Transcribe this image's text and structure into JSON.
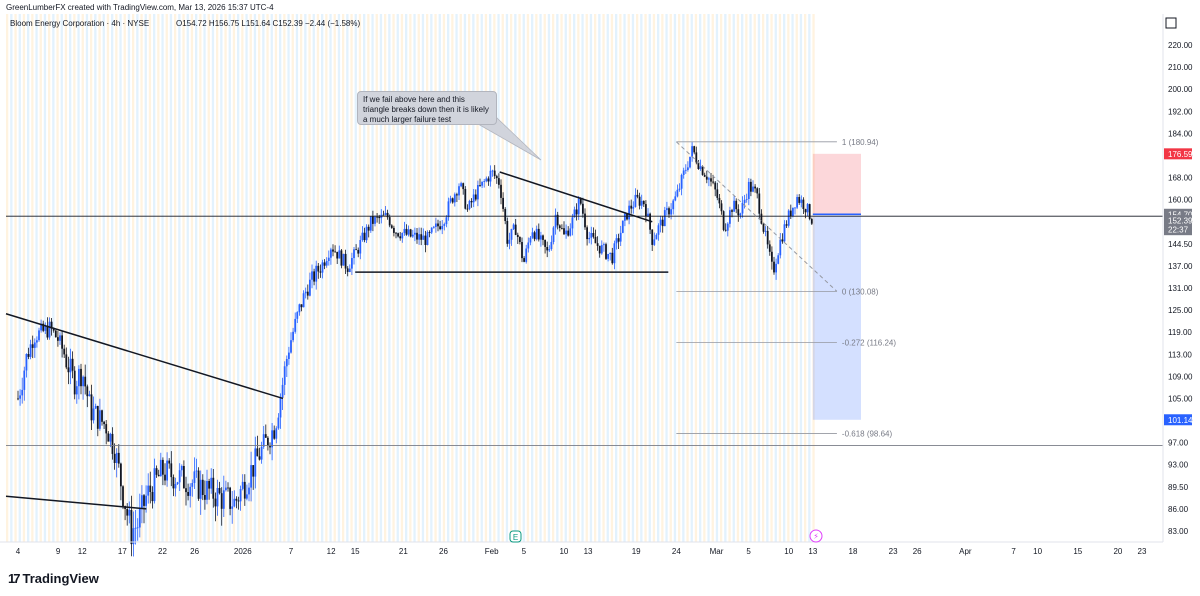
{
  "header": {
    "credit": "GreenLumberFX created with TradingView.com, Mar 13, 2026 15:37 UTC-4",
    "symbol_line": "Bloom Energy Corporation · 4h · NYSE",
    "ohlc": "O154.72  H156.75  L151.64  C152.39  −2.44 (−1.58%)"
  },
  "callout": {
    "text": "If we fail above here and this triangle breaks down then it is likely a much larger failure test"
  },
  "footer": {
    "logo_text": "TradingView",
    "logo_mark": "17"
  },
  "markers": {
    "earnings": "E",
    "dividend": "⚡"
  },
  "chart_data": {
    "type": "candlestick",
    "title": "Bloom Energy Corporation · 4h · NYSE",
    "y_ticks": [
      83.0,
      86.0,
      89.5,
      93.0,
      97.0,
      101.0,
      105.0,
      109.0,
      113.0,
      119.0,
      125.0,
      131.0,
      137.0,
      144.5,
      152.0,
      160.0,
      168.0,
      176.0,
      184.0,
      192.0,
      200.0,
      210.0,
      220.0
    ],
    "y_tick_labels": [
      "83.00",
      "86.00",
      "89.50",
      "93.00",
      "97.00",
      "101.00",
      "105.00",
      "109.00",
      "113.00",
      "119.00",
      "125.00",
      "131.00",
      "137.00",
      "144.50",
      "152.00",
      "160.00",
      "168.00",
      "176.00",
      "184.00",
      "192.00",
      "200.00",
      "210.00",
      "220.00"
    ],
    "x_ticks": [
      "4",
      "9",
      "12",
      "17",
      "22",
      "26",
      "2026",
      "7",
      "12",
      "15",
      "21",
      "26",
      "Feb",
      "5",
      "10",
      "13",
      "19",
      "24",
      "Mar",
      "5",
      "10",
      "13",
      "18",
      "23",
      "26",
      "Apr",
      "7",
      "10",
      "15",
      "20",
      "23"
    ],
    "price_path": [
      [
        "2025-12-04",
        105
      ],
      [
        "2025-12-05",
        112
      ],
      [
        "2025-12-06",
        118
      ],
      [
        "2025-12-08",
        120
      ],
      [
        "2025-12-09",
        117
      ],
      [
        "2025-12-10",
        112
      ],
      [
        "2025-12-11",
        108
      ],
      [
        "2025-12-12",
        110
      ],
      [
        "2025-12-13",
        103
      ],
      [
        "2025-12-15",
        100
      ],
      [
        "2025-12-16",
        96
      ],
      [
        "2025-12-17",
        89
      ],
      [
        "2025-12-18",
        83
      ],
      [
        "2025-12-19",
        84
      ],
      [
        "2025-12-20",
        88
      ],
      [
        "2025-12-22",
        92
      ],
      [
        "2025-12-24",
        91
      ],
      [
        "2025-12-26",
        90
      ],
      [
        "2025-12-29",
        88
      ],
      [
        "2025-12-31",
        87
      ],
      [
        "2026-01-02",
        92
      ],
      [
        "2026-01-05",
        100
      ],
      [
        "2026-01-06",
        108
      ],
      [
        "2026-01-07",
        117
      ],
      [
        "2026-01-08",
        125
      ],
      [
        "2026-01-09",
        131
      ],
      [
        "2026-01-11",
        138
      ],
      [
        "2026-01-12",
        144
      ],
      [
        "2026-01-14",
        137
      ],
      [
        "2026-01-15",
        141
      ],
      [
        "2026-01-17",
        152
      ],
      [
        "2026-01-19",
        154
      ],
      [
        "2026-01-20",
        149
      ],
      [
        "2026-01-22",
        147
      ],
      [
        "2026-01-24",
        146
      ],
      [
        "2026-01-26",
        153
      ],
      [
        "2026-01-27",
        160
      ],
      [
        "2026-01-28",
        166
      ],
      [
        "2026-01-29",
        156
      ],
      [
        "2026-01-30",
        162
      ],
      [
        "2026-02-01",
        170
      ],
      [
        "2026-02-02",
        166
      ],
      [
        "2026-02-03",
        145
      ],
      [
        "2026-02-04",
        150
      ],
      [
        "2026-02-05",
        138
      ],
      [
        "2026-02-06",
        150
      ],
      [
        "2026-02-08",
        141
      ],
      [
        "2026-02-09",
        155
      ],
      [
        "2026-02-10",
        147
      ],
      [
        "2026-02-11",
        152
      ],
      [
        "2026-02-12",
        160
      ],
      [
        "2026-02-13",
        147
      ],
      [
        "2026-02-15",
        142
      ],
      [
        "2026-02-16",
        140
      ],
      [
        "2026-02-17",
        148
      ],
      [
        "2026-02-18",
        156
      ],
      [
        "2026-02-19",
        160
      ],
      [
        "2026-02-20",
        159
      ],
      [
        "2026-02-21",
        146
      ],
      [
        "2026-02-23",
        156
      ],
      [
        "2026-02-24",
        161
      ],
      [
        "2026-02-25",
        170
      ],
      [
        "2026-02-26",
        178
      ],
      [
        "2026-02-27",
        172
      ],
      [
        "2026-02-28",
        168
      ],
      [
        "2026-03-01",
        162
      ],
      [
        "2026-03-02",
        150
      ],
      [
        "2026-03-03",
        158
      ],
      [
        "2026-03-04",
        155
      ],
      [
        "2026-03-05",
        165
      ],
      [
        "2026-03-06",
        162
      ],
      [
        "2026-03-07",
        148
      ],
      [
        "2026-03-08",
        135
      ],
      [
        "2026-03-09",
        146
      ],
      [
        "2026-03-10",
        154
      ],
      [
        "2026-03-11",
        161
      ],
      [
        "2026-03-12",
        158
      ],
      [
        "2026-03-13",
        152.39
      ]
    ],
    "last_price": 152.39,
    "price_labels": [
      {
        "text": "176.59",
        "value": 176.59,
        "color": "#f23645"
      },
      {
        "text": "154.70",
        "value": 154.7,
        "color": "#787b86"
      },
      {
        "text": "152.39",
        "value": 152.39,
        "color": "#787b86"
      },
      {
        "text": "22:37",
        "value": 149.3,
        "color": "#787b86"
      },
      {
        "text": "101.14",
        "value": 101.14,
        "color": "#2962ff"
      }
    ],
    "fibonacci": {
      "start_date": "2026-02-24",
      "end_date": "2026-03-16",
      "levels": [
        {
          "label": "1 (180.94)",
          "value": 180.94
        },
        {
          "label": "0 (130.08)",
          "value": 130.08
        },
        {
          "label": "-0.272 (116.24)",
          "value": 116.24
        },
        {
          "label": "-0.618 (98.64)",
          "value": 98.64
        }
      ]
    },
    "short_position": {
      "start_date": "2026-03-13",
      "end_date": "2026-03-19",
      "entry": 154.7,
      "stop": 176.59,
      "target": 101.14
    },
    "horizontal_lines": [
      {
        "value": 154.0,
        "color": "#131722"
      },
      {
        "value": 96.5,
        "color": "#787b86"
      },
      {
        "value": 135.3,
        "color": "#131722",
        "from": "2026-01-15",
        "to": "2026-02-23"
      }
    ],
    "trendlines": [
      {
        "from": [
          "2025-11-30",
          124
        ],
        "to": [
          "2026-01-06",
          105
        ]
      },
      {
        "from": [
          "2025-11-30",
          88
        ],
        "to": [
          "2025-12-20",
          86
        ]
      },
      {
        "from": [
          "2026-02-02",
          170
        ],
        "to": [
          "2026-02-21",
          152
        ]
      }
    ],
    "dashed_lines": [
      {
        "from": [
          "2026-02-24",
          180.94
        ],
        "to": [
          "2026-03-16",
          130.08
        ],
        "color": "#9598a1"
      }
    ],
    "colors": {
      "up": "#2962ff",
      "down": "#131722",
      "band_a": "#fff3e0",
      "band_b": "#e3f2fd"
    },
    "grid": false
  }
}
